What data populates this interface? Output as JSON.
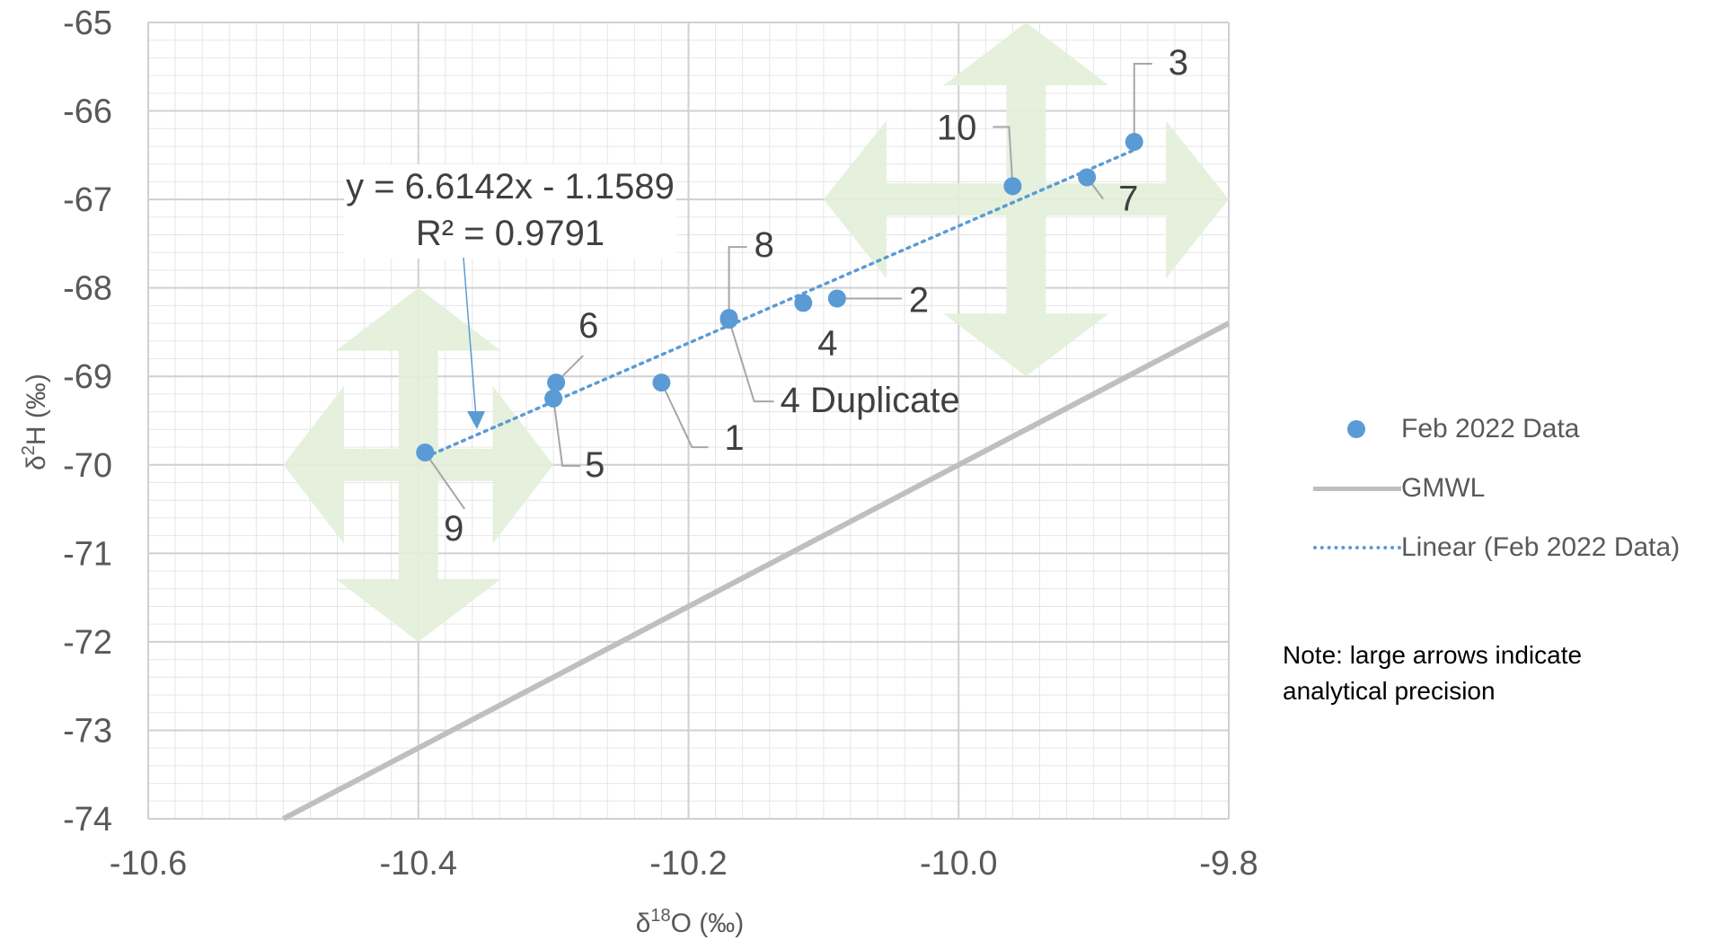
{
  "chart_data": {
    "type": "scatter",
    "title": "",
    "xlabel": "δ18O (‰)",
    "ylabel": "δ2H (‰)",
    "xlim": [
      -10.6,
      -9.8
    ],
    "ylim": [
      -74,
      -65
    ],
    "x_ticks": [
      "-10.6",
      "-10.4",
      "-10.2",
      "-10.0",
      "-9.8"
    ],
    "y_ticks": [
      "-74",
      "-73",
      "-72",
      "-71",
      "-70",
      "-69",
      "-68",
      "-67",
      "-66",
      "-65"
    ],
    "grid": true,
    "legend_position": "right",
    "series": [
      {
        "name": "Feb 2022 Data",
        "type": "scatter",
        "color": "#5b9bd5",
        "points": [
          {
            "label": "1",
            "x": -10.22,
            "y": -69.07
          },
          {
            "label": "2",
            "x": -10.09,
            "y": -68.12
          },
          {
            "label": "3",
            "x": -9.87,
            "y": -66.35
          },
          {
            "label": "4",
            "x": -10.115,
            "y": -68.17
          },
          {
            "label": "4 Duplicate",
            "x": -10.17,
            "y": -68.36
          },
          {
            "label": "5",
            "x": -10.3,
            "y": -69.25
          },
          {
            "label": "6",
            "x": -10.298,
            "y": -69.07
          },
          {
            "label": "7",
            "x": -9.905,
            "y": -66.75
          },
          {
            "label": "8",
            "x": -10.17,
            "y": -68.34
          },
          {
            "label": "9",
            "x": -10.395,
            "y": -69.86
          },
          {
            "label": "10",
            "x": -9.96,
            "y": -66.85
          }
        ]
      },
      {
        "name": "GMWL",
        "type": "line",
        "color": "#bfbfbf",
        "equation": {
          "slope": 8,
          "intercept": 10
        }
      },
      {
        "name": "Linear (Feb 2022 Data)",
        "type": "line",
        "style": "dotted",
        "color": "#5b9bd5",
        "equation": {
          "slope": 6.6142,
          "intercept": -1.1589
        },
        "x_range": [
          -10.395,
          -9.87
        ]
      }
    ],
    "annotations": {
      "equation": "y = 6.6142x - 1.1589",
      "r_squared": "R² = 0.9791",
      "note": "Note:  large arrows indicate analytical precision",
      "precision_arrows": [
        {
          "x": -10.4,
          "y": -70,
          "half_width_x": 0.1,
          "half_width_y": 2
        },
        {
          "x": -9.95,
          "y": -67,
          "half_width_x": 0.15,
          "half_width_y": 2
        }
      ]
    },
    "colors": {
      "accent": "#5b9bd5",
      "gmwl": "#bfbfbf",
      "arrows": "#e2efd9",
      "grid_major": "#d0d0d0",
      "grid_minor": "#e6e6e6"
    }
  }
}
